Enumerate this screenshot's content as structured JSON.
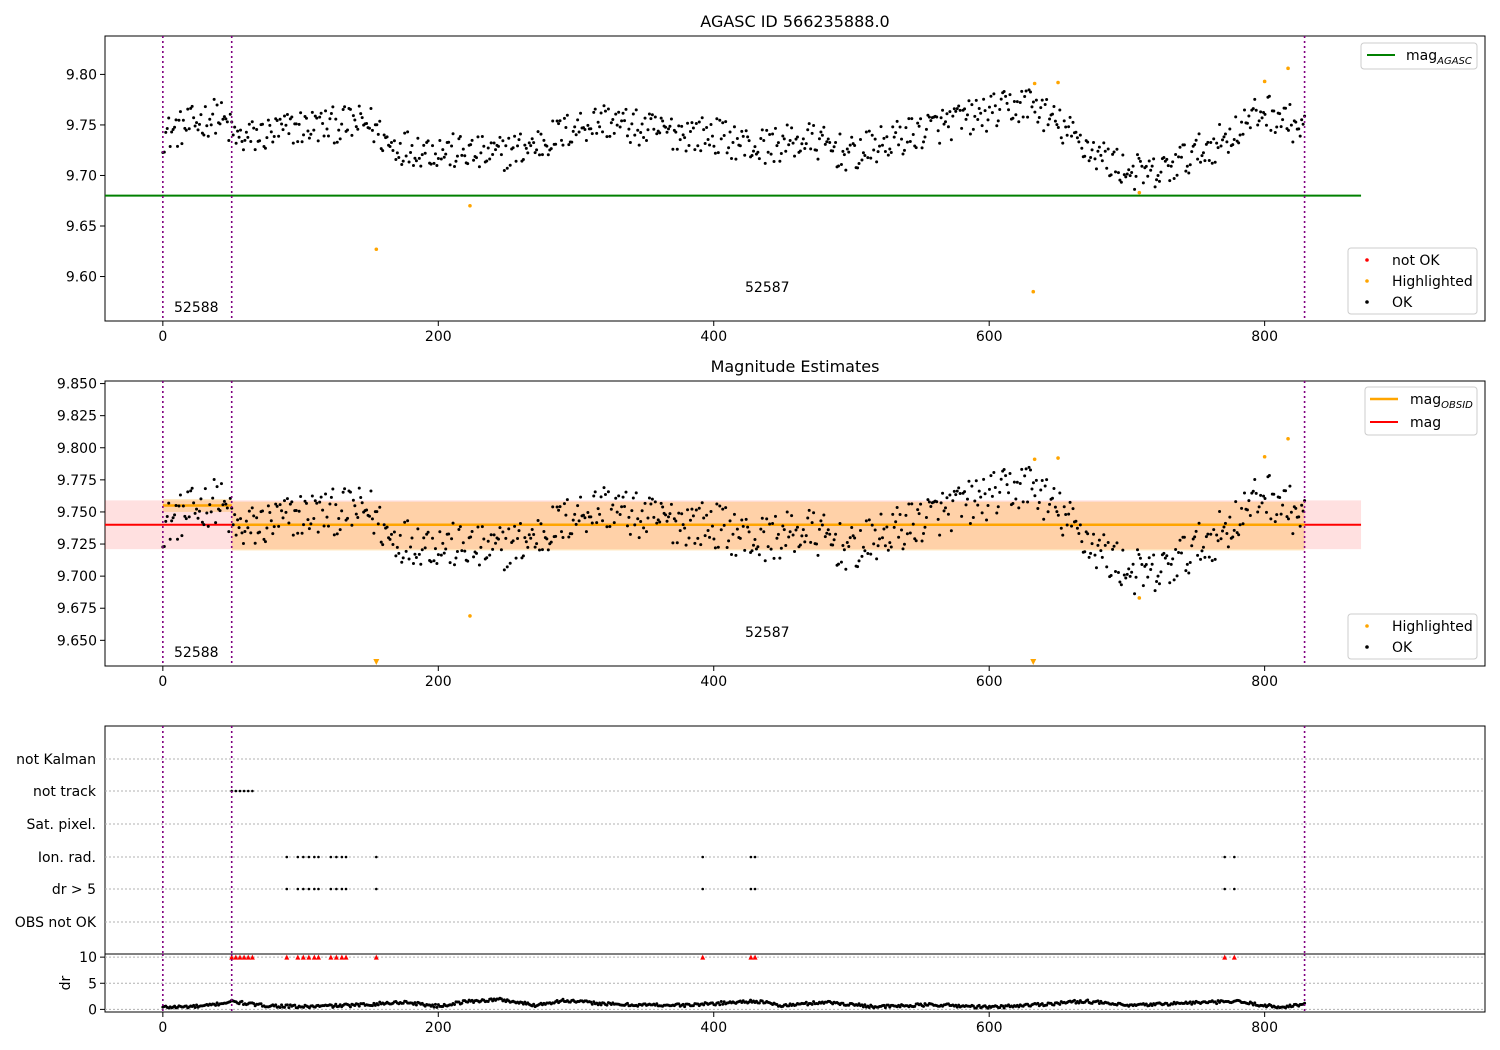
{
  "chart_data": [
    {
      "type": "scatter",
      "title": "AGASC ID 566235888.0",
      "xlim": [
        -42,
        960
      ],
      "ylim": [
        9.556,
        9.838
      ],
      "x_ticks": [
        0,
        200,
        400,
        600,
        800
      ],
      "y_ticks": [
        9.6,
        9.65,
        9.7,
        9.75,
        9.8
      ],
      "y_tick_labels": [
        "9.60",
        "9.65",
        "9.70",
        "9.75",
        "9.80"
      ],
      "obsid_boundaries": [
        0,
        50,
        829
      ],
      "mag_agasc": 9.68,
      "mag_agasc_xrange": [
        -42,
        870
      ],
      "obsid_labels": [
        {
          "text": "52588",
          "x": 25,
          "y": 9.57
        },
        {
          "text": "52587",
          "x": 440,
          "y": 9.59
        }
      ],
      "line_legend": {
        "placement": "upper right",
        "entries": [
          {
            "label": "mag",
            "sub": "AGASC",
            "color": "#008000"
          }
        ]
      },
      "point_legend": {
        "placement": "lower right",
        "entries": [
          {
            "label": "not OK",
            "color": "#ff0000"
          },
          {
            "label": "Highlighted",
            "color": "#ffa500"
          },
          {
            "label": "OK",
            "color": "#000000"
          }
        ]
      },
      "highlighted_points": [
        [
          155,
          9.627
        ],
        [
          223,
          9.67
        ],
        [
          632,
          9.585
        ],
        [
          633,
          9.791
        ],
        [
          650,
          9.792
        ],
        [
          709,
          9.683
        ],
        [
          800,
          9.793
        ],
        [
          817,
          9.806
        ]
      ],
      "ok_series": {
        "x_range": [
          0,
          829
        ],
        "n": 780,
        "segments": [
          [
            0,
            9.74
          ],
          [
            40,
            9.76
          ],
          [
            55,
            9.735
          ],
          [
            100,
            9.748
          ],
          [
            150,
            9.752
          ],
          [
            165,
            9.73
          ],
          [
            200,
            9.725
          ],
          [
            240,
            9.72
          ],
          [
            270,
            9.73
          ],
          [
            300,
            9.748
          ],
          [
            320,
            9.755
          ],
          [
            350,
            9.745
          ],
          [
            400,
            9.74
          ],
          [
            430,
            9.728
          ],
          [
            470,
            9.735
          ],
          [
            500,
            9.72
          ],
          [
            530,
            9.735
          ],
          [
            560,
            9.748
          ],
          [
            600,
            9.762
          ],
          [
            630,
            9.772
          ],
          [
            650,
            9.75
          ],
          [
            680,
            9.72
          ],
          [
            700,
            9.705
          ],
          [
            720,
            9.7
          ],
          [
            740,
            9.715
          ],
          [
            770,
            9.735
          ],
          [
            800,
            9.765
          ],
          [
            829,
            9.745
          ]
        ]
      }
    },
    {
      "type": "scatter",
      "title": "Magnitude Estimates",
      "xlim": [
        -42,
        960
      ],
      "ylim": [
        9.63,
        9.852
      ],
      "x_ticks": [
        0,
        200,
        400,
        600,
        800
      ],
      "y_ticks": [
        9.65,
        9.675,
        9.7,
        9.725,
        9.75,
        9.775,
        9.8,
        9.825,
        9.85
      ],
      "y_tick_labels": [
        "9.650",
        "9.675",
        "9.700",
        "9.725",
        "9.750",
        "9.775",
        "9.800",
        "9.825",
        "9.850"
      ],
      "obsid_boundaries": [
        0,
        50,
        829
      ],
      "mag": 9.74,
      "mag_band": [
        9.721,
        9.759
      ],
      "mag_xrange": [
        -42,
        870
      ],
      "mag_obsid_segments": [
        {
          "x": [
            0,
            50
          ],
          "value": 9.755,
          "band": [
            9.75,
            9.76
          ]
        },
        {
          "x": [
            50,
            829
          ],
          "value": 9.74,
          "band": [
            9.72,
            9.758
          ]
        }
      ],
      "obsid_labels": [
        {
          "text": "52588",
          "x": 25,
          "y": 9.637
        },
        {
          "text": "52587",
          "x": 440,
          "y": 9.652
        }
      ],
      "line_legend": {
        "placement": "upper right",
        "entries": [
          {
            "label": "mag",
            "sub": "OBSID",
            "color": "#ffa500"
          },
          {
            "label": "mag",
            "sub": "",
            "color": "#ff0000"
          }
        ]
      },
      "point_legend": {
        "placement": "lower right",
        "entries": [
          {
            "label": "Highlighted",
            "color": "#ffa500"
          },
          {
            "label": "OK",
            "color": "#000000"
          }
        ]
      },
      "highlighted_points": [
        [
          223,
          9.669
        ],
        [
          633,
          9.791
        ],
        [
          650,
          9.792
        ],
        [
          709,
          9.683
        ],
        [
          800,
          9.793
        ],
        [
          817,
          9.807
        ]
      ],
      "below_range_markers": [
        155,
        632
      ]
    },
    {
      "type": "scatter",
      "title": "",
      "xlim": [
        -42,
        960
      ],
      "categories": [
        "not Kalman",
        "not track",
        "Sat. pixel.",
        "Ion. rad.",
        "dr > 5",
        "OBS not OK"
      ],
      "obsid_boundaries": [
        0,
        50,
        829
      ],
      "flags": {
        "not Kalman": [],
        "not track": [
          50,
          53,
          56,
          59,
          62,
          65
        ],
        "Sat. pixel.": [],
        "Ion. rad.": [
          90,
          98,
          102,
          106,
          110,
          113,
          122,
          126,
          130,
          133,
          155,
          392,
          427,
          430,
          771,
          778
        ],
        "dr > 5": [
          90,
          98,
          102,
          106,
          110,
          113,
          122,
          126,
          130,
          133,
          155,
          392,
          427,
          430,
          771,
          778
        ],
        "OBS not OK": []
      }
    },
    {
      "type": "scatter",
      "title": "",
      "xlim": [
        -42,
        960
      ],
      "ylim": [
        -0.5,
        10.6
      ],
      "ylabel": "dr",
      "x_ticks": [
        0,
        200,
        400,
        600,
        800
      ],
      "y_ticks": [
        0,
        5,
        10
      ],
      "y_tick_labels": [
        "0",
        "5",
        "10"
      ],
      "obsid_boundaries": [
        0,
        50,
        829
      ],
      "dr_flagged_x": [
        50,
        53,
        56,
        59,
        62,
        65,
        90,
        98,
        102,
        106,
        110,
        113,
        122,
        126,
        130,
        133,
        155,
        392,
        427,
        430,
        771,
        778
      ],
      "dr_flagged_value": 10,
      "dr_series": {
        "x_range": [
          0,
          829
        ],
        "segments": [
          [
            0,
            0.4
          ],
          [
            30,
            0.6
          ],
          [
            50,
            1.5
          ],
          [
            70,
            0.8
          ],
          [
            100,
            0.5
          ],
          [
            140,
            0.8
          ],
          [
            175,
            1.4
          ],
          [
            200,
            0.6
          ],
          [
            220,
            1.5
          ],
          [
            245,
            1.9
          ],
          [
            270,
            0.8
          ],
          [
            290,
            1.7
          ],
          [
            330,
            0.9
          ],
          [
            380,
            0.8
          ],
          [
            430,
            1.6
          ],
          [
            450,
            0.7
          ],
          [
            480,
            1.4
          ],
          [
            520,
            0.5
          ],
          [
            560,
            0.9
          ],
          [
            600,
            0.4
          ],
          [
            640,
            1.0
          ],
          [
            670,
            1.6
          ],
          [
            700,
            0.7
          ],
          [
            740,
            1.2
          ],
          [
            780,
            1.5
          ],
          [
            810,
            0.4
          ],
          [
            829,
            1.0
          ]
        ]
      }
    }
  ]
}
